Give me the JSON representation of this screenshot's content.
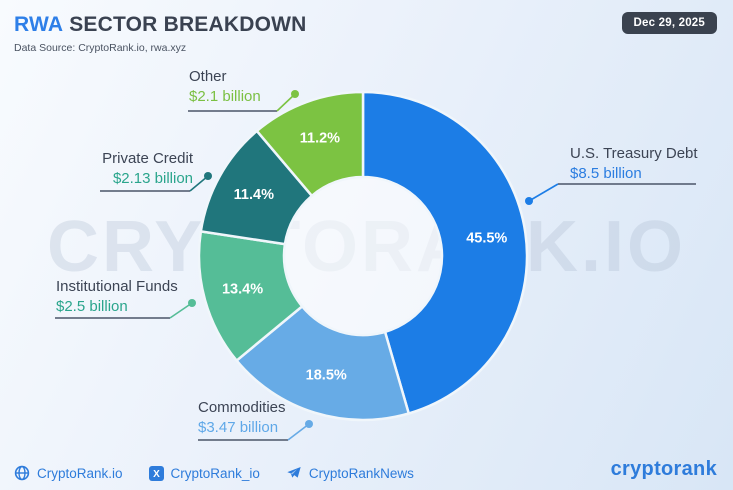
{
  "header": {
    "title_accent": "RWA",
    "title_rest": "SECTOR BREAKDOWN",
    "subtitle": "Data Source: CryptoRank.io, rwa.xyz",
    "date_badge": "Dec 29, 2025"
  },
  "watermark": "CRYPTORANK.IO",
  "chart_data": {
    "type": "pie",
    "donut": true,
    "title": "RWA Sector Breakdown",
    "unit": "USD billions",
    "start_angle_deg": 0,
    "direction": "clockwise",
    "slices": [
      {
        "label": "U.S. Treasury Debt",
        "value_text": "$8.5 billion",
        "value_billion": 8.5,
        "percent": 45.5,
        "color": "#1C7DE6",
        "text_color": "#2B7DE0"
      },
      {
        "label": "Commodities",
        "value_text": "$3.47 billion",
        "value_billion": 3.47,
        "percent": 18.5,
        "color": "#67ABE6",
        "text_color": "#5FA8E8"
      },
      {
        "label": "Institutional Funds",
        "value_text": "$2.5 billion",
        "value_billion": 2.5,
        "percent": 13.4,
        "color": "#55BD97",
        "text_color": "#2AA58C"
      },
      {
        "label": "Private Credit",
        "value_text": "$2.13 billion",
        "value_billion": 2.13,
        "percent": 11.4,
        "color": "#20767C",
        "text_color": "#2AA58C"
      },
      {
        "label": "Other",
        "value_text": "$2.1 billion",
        "value_billion": 2.1,
        "percent": 11.2,
        "color": "#7CC342",
        "text_color": "#7BC043"
      }
    ]
  },
  "footer": {
    "links": [
      {
        "icon": "globe-icon",
        "label": "CryptoRank.io"
      },
      {
        "icon": "x-twitter-icon",
        "label": "CryptoRank_io"
      },
      {
        "icon": "telegram-icon",
        "label": "CryptoRankNews"
      }
    ],
    "brand": "cryptorank"
  }
}
